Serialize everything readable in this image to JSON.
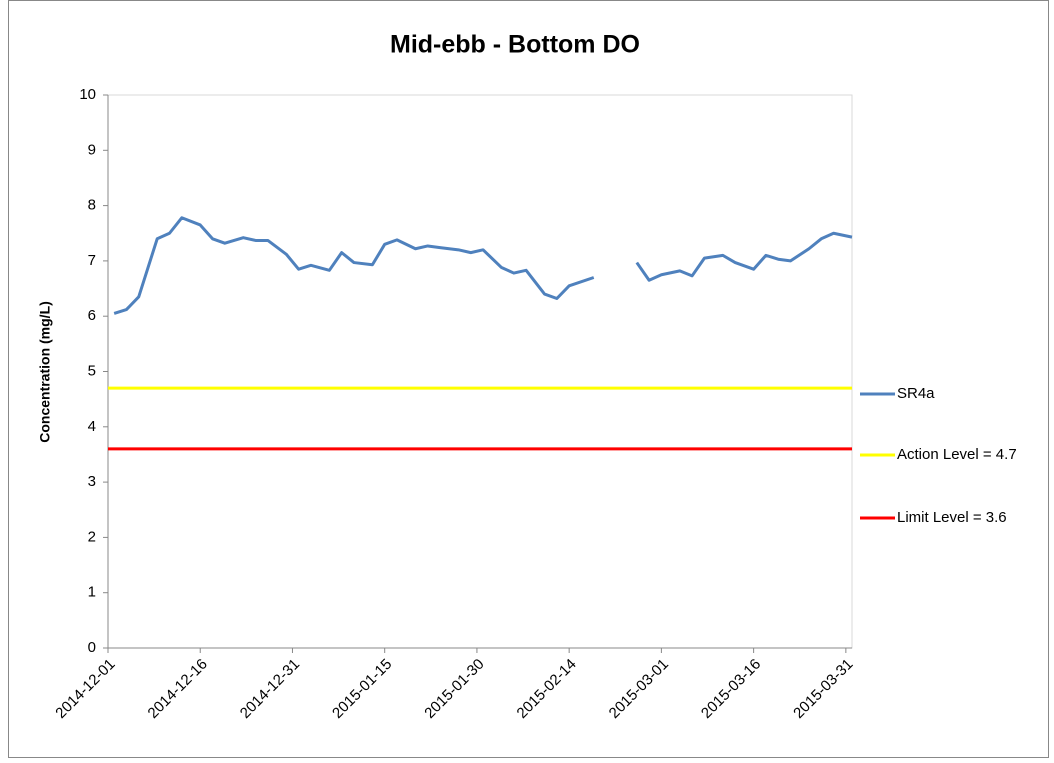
{
  "chart_data": {
    "type": "line",
    "title": "Mid-ebb - Bottom DO",
    "y_label": "Concentration (mg/L)",
    "ylim": [
      0,
      10
    ],
    "yticks": [
      0,
      1,
      2,
      3,
      4,
      5,
      6,
      7,
      8,
      9,
      10
    ],
    "xlim": [
      "2014-12-01",
      "2015-04-01"
    ],
    "xticks": [
      "2014-12-01",
      "2014-12-16",
      "2014-12-31",
      "2015-01-15",
      "2015-01-30",
      "2015-02-14",
      "2015-03-01",
      "2015-03-16",
      "2015-03-31"
    ],
    "x": [
      "2014-12-02",
      "2014-12-04",
      "2014-12-06",
      "2014-12-09",
      "2014-12-11",
      "2014-12-13",
      "2014-12-16",
      "2014-12-18",
      "2014-12-20",
      "2014-12-23",
      "2014-12-25",
      "2014-12-27",
      "2014-12-30",
      "2015-01-01",
      "2015-01-03",
      "2015-01-06",
      "2015-01-08",
      "2015-01-10",
      "2015-01-13",
      "2015-01-15",
      "2015-01-17",
      "2015-01-20",
      "2015-01-22",
      "2015-01-24",
      "2015-01-27",
      "2015-01-29",
      "2015-01-31",
      "2015-02-03",
      "2015-02-05",
      "2015-02-07",
      "2015-02-10",
      "2015-02-12",
      "2015-02-14",
      "2015-02-18",
      "2015-02-21",
      "2015-02-25",
      "2015-02-27",
      "2015-03-01",
      "2015-03-04",
      "2015-03-06",
      "2015-03-08",
      "2015-03-11",
      "2015-03-13",
      "2015-03-16",
      "2015-03-18",
      "2015-03-20",
      "2015-03-22",
      "2015-03-25",
      "2015-03-27",
      "2015-03-29",
      "2015-04-01"
    ],
    "series": [
      {
        "name": "SR4a",
        "color": "#4f81bd",
        "values": [
          6.05,
          6.12,
          6.35,
          7.4,
          7.5,
          7.78,
          7.65,
          7.4,
          7.32,
          7.42,
          7.37,
          7.37,
          7.12,
          6.85,
          6.92,
          6.83,
          7.15,
          6.97,
          6.93,
          7.3,
          7.38,
          7.22,
          7.27,
          7.24,
          7.2,
          7.15,
          7.2,
          6.88,
          6.78,
          6.83,
          6.4,
          6.32,
          6.55,
          6.7,
          null,
          6.97,
          6.65,
          6.75,
          6.82,
          6.73,
          7.05,
          7.1,
          6.97,
          6.85,
          7.1,
          7.03,
          7.0,
          7.22,
          7.4,
          7.5,
          7.43
        ]
      }
    ],
    "reference_lines": [
      {
        "name": "Action Level = 4.7",
        "value": 4.7,
        "color": "#ffff00"
      },
      {
        "name": "Limit Level = 3.6",
        "value": 3.6,
        "color": "#ff0000"
      }
    ]
  }
}
